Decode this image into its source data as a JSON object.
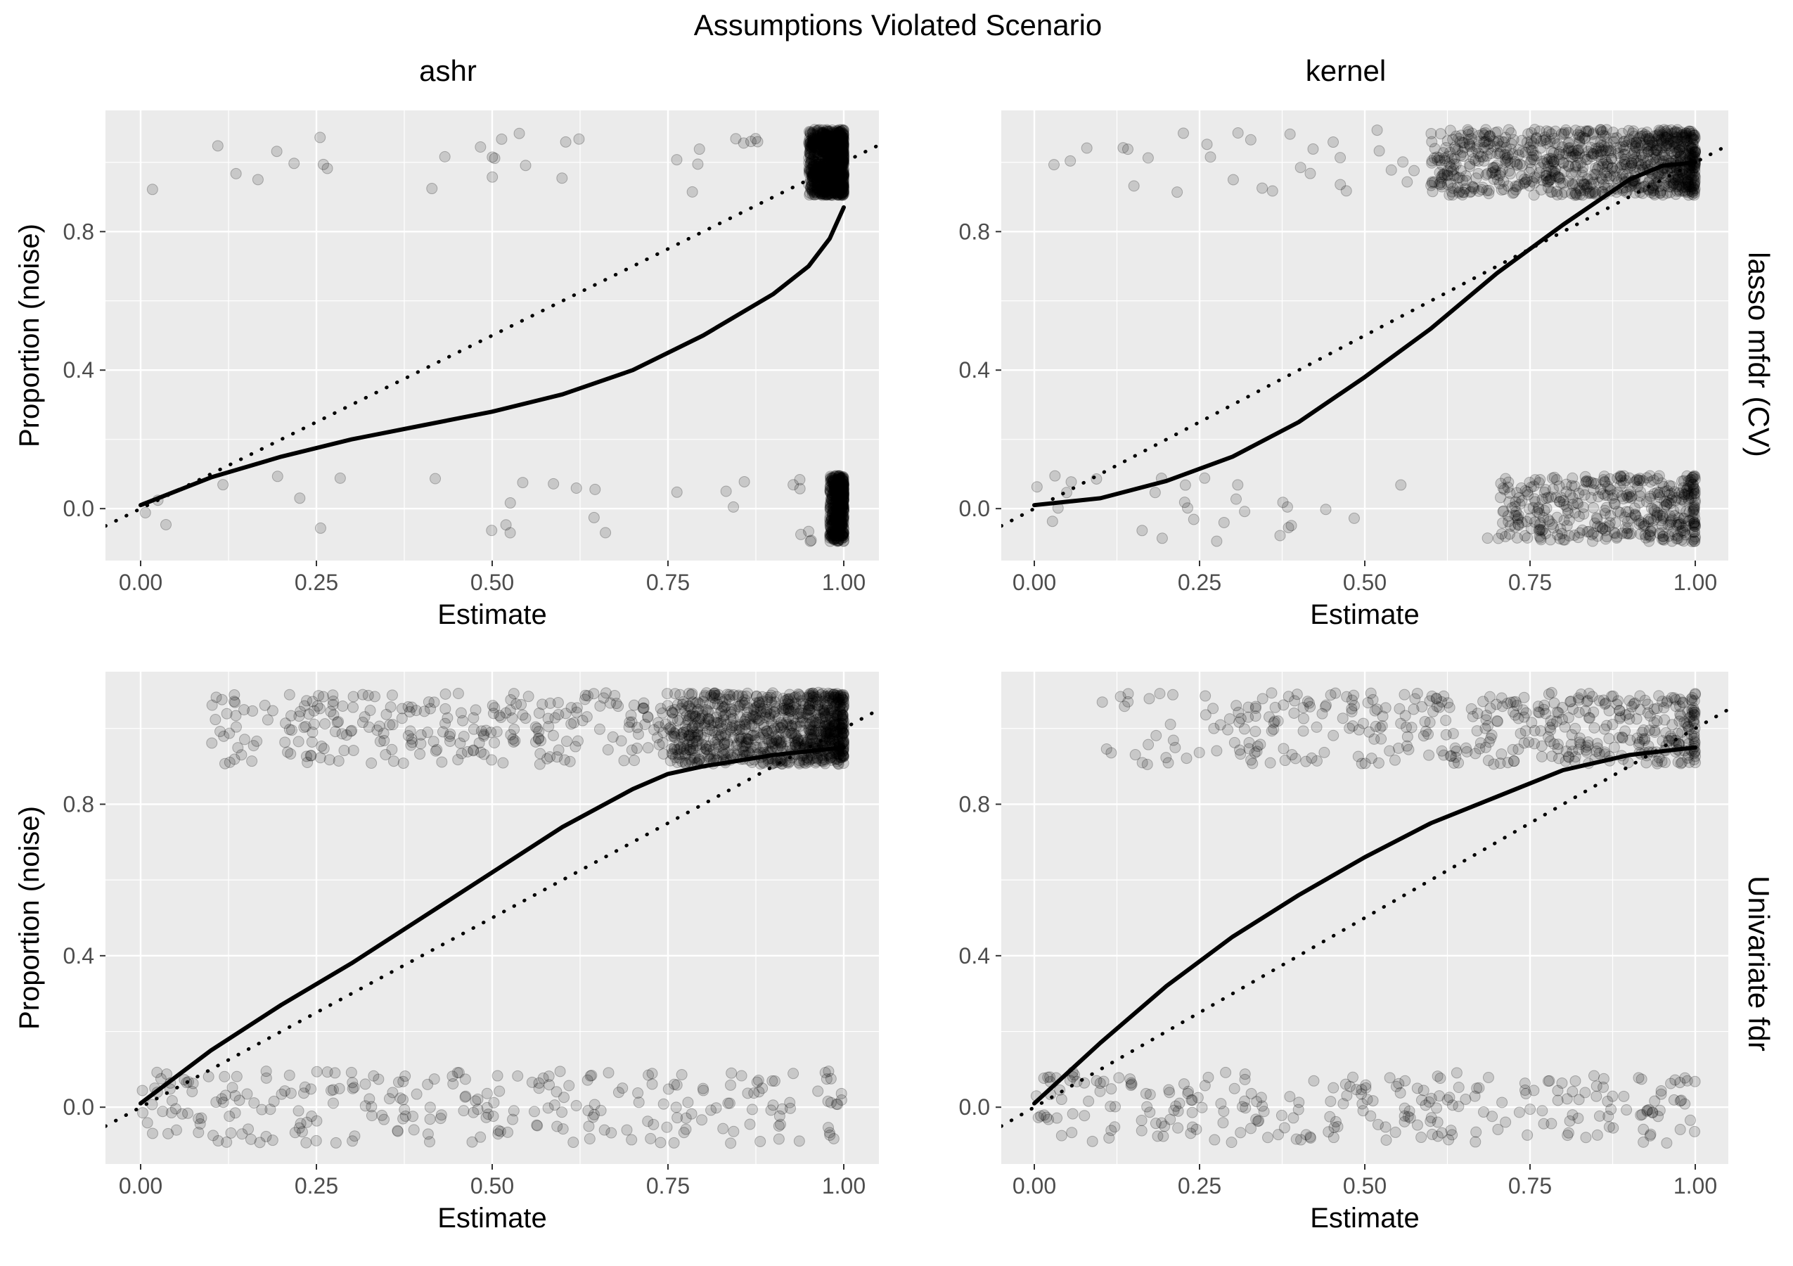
{
  "figure": {
    "title": "Assumptions Violated Scenario"
  },
  "columns": [
    "ashr",
    "kernel"
  ],
  "rows": [
    "lasso mfdr (CV)",
    "Univariate fdr"
  ],
  "axes": {
    "xlabel": "Estimate",
    "ylabel": "Proportion (noise)",
    "x_ticks": [
      "0.00",
      "0.25",
      "0.50",
      "0.75",
      "1.00"
    ],
    "y_ticks": [
      "0.0",
      "0.4",
      "0.8"
    ],
    "xlim": [
      -0.05,
      1.05
    ],
    "ylim": [
      -0.15,
      1.15
    ]
  },
  "colors": {
    "panel_bg": "#ebebeb",
    "grid": "#ffffff",
    "points": "#000000",
    "line": "#000000"
  },
  "chart_data": [
    {
      "type": "scatter",
      "panel": "ashr / lasso mfdr (CV)",
      "column": "ashr",
      "row": "lasso mfdr (CV)",
      "xlabel": "Estimate",
      "ylabel": "Proportion (noise)",
      "xlim": [
        -0.05,
        1.05
      ],
      "ylim": [
        -0.15,
        1.15
      ],
      "points_note": "jittered 0/1 outcomes with alpha 0.15",
      "point_clusters": [
        {
          "y": 1,
          "x_range": [
            0.95,
            1.0
          ],
          "density": "very high"
        },
        {
          "y": 1,
          "x_range": [
            0.0,
            0.95
          ],
          "density": "sparse"
        },
        {
          "y": 0,
          "x_range": [
            0.98,
            1.0
          ],
          "density": "high"
        },
        {
          "y": 0,
          "x_range": [
            0.0,
            0.98
          ],
          "density": "sparse"
        }
      ],
      "series": [
        {
          "name": "",
          "style": "solid",
          "x": [
            0.0,
            0.1,
            0.2,
            0.3,
            0.4,
            0.5,
            0.6,
            0.7,
            0.8,
            0.9,
            0.95,
            0.98,
            1.0
          ],
          "y": [
            0.01,
            0.09,
            0.15,
            0.2,
            0.24,
            0.28,
            0.33,
            0.4,
            0.5,
            0.62,
            0.7,
            0.78,
            0.87
          ]
        },
        {
          "name": "",
          "style": "dotted",
          "x": [
            -0.05,
            1.05
          ],
          "y": [
            -0.05,
            1.05
          ]
        }
      ]
    },
    {
      "type": "scatter",
      "panel": "kernel / lasso mfdr (CV)",
      "column": "kernel",
      "row": "lasso mfdr (CV)",
      "xlabel": "Estimate",
      "ylabel": "Proportion (noise)",
      "xlim": [
        -0.05,
        1.05
      ],
      "ylim": [
        -0.15,
        1.15
      ],
      "points_note": "jittered 0/1 outcomes with alpha 0.15",
      "point_clusters": [
        {
          "y": 1,
          "x_range": [
            0.6,
            1.0
          ],
          "density": "very high"
        },
        {
          "y": 1,
          "x_range": [
            0.0,
            0.6
          ],
          "density": "sparse"
        },
        {
          "y": 0,
          "x_range": [
            0.7,
            1.0
          ],
          "density": "high"
        },
        {
          "y": 0,
          "x_range": [
            0.0,
            0.7
          ],
          "density": "sparse"
        }
      ],
      "series": [
        {
          "name": "",
          "style": "solid",
          "x": [
            0.0,
            0.1,
            0.2,
            0.3,
            0.4,
            0.5,
            0.6,
            0.7,
            0.8,
            0.9,
            0.95,
            1.0
          ],
          "y": [
            0.01,
            0.03,
            0.08,
            0.15,
            0.25,
            0.38,
            0.52,
            0.68,
            0.82,
            0.95,
            0.99,
            1.0
          ]
        },
        {
          "name": "",
          "style": "dotted",
          "x": [
            -0.05,
            1.05
          ],
          "y": [
            -0.05,
            1.05
          ]
        }
      ]
    },
    {
      "type": "scatter",
      "panel": "ashr / Univariate fdr",
      "column": "ashr",
      "row": "Univariate fdr",
      "xlabel": "Estimate",
      "ylabel": "Proportion (noise)",
      "xlim": [
        -0.05,
        1.05
      ],
      "ylim": [
        -0.15,
        1.15
      ],
      "points_note": "jittered 0/1 outcomes with alpha 0.15",
      "point_clusters": [
        {
          "y": 1,
          "x_range": [
            0.75,
            1.0
          ],
          "density": "very high"
        },
        {
          "y": 1,
          "x_range": [
            0.1,
            0.75
          ],
          "density": "moderate"
        },
        {
          "y": 0,
          "x_range": [
            0.0,
            1.0
          ],
          "density": "moderate"
        }
      ],
      "series": [
        {
          "name": "",
          "style": "solid",
          "x": [
            0.0,
            0.1,
            0.2,
            0.3,
            0.4,
            0.5,
            0.6,
            0.7,
            0.75,
            0.8,
            0.9,
            1.0
          ],
          "y": [
            0.01,
            0.15,
            0.27,
            0.38,
            0.5,
            0.62,
            0.74,
            0.84,
            0.88,
            0.9,
            0.93,
            0.95
          ]
        },
        {
          "name": "",
          "style": "dotted",
          "x": [
            -0.05,
            1.05
          ],
          "y": [
            -0.05,
            1.05
          ]
        }
      ]
    },
    {
      "type": "scatter",
      "panel": "kernel / Univariate fdr",
      "column": "kernel",
      "row": "Univariate fdr",
      "xlabel": "Estimate",
      "ylabel": "Proportion (noise)",
      "xlim": [
        -0.05,
        1.05
      ],
      "ylim": [
        -0.15,
        1.15
      ],
      "points_note": "jittered 0/1 outcomes with alpha 0.15",
      "point_clusters": [
        {
          "y": 1,
          "x_range": [
            0.3,
            1.0
          ],
          "density": "high"
        },
        {
          "y": 1,
          "x_range": [
            0.1,
            0.3
          ],
          "density": "sparse"
        },
        {
          "y": 0,
          "x_range": [
            0.0,
            1.0
          ],
          "density": "moderate"
        }
      ],
      "series": [
        {
          "name": "",
          "style": "solid",
          "x": [
            0.0,
            0.1,
            0.2,
            0.3,
            0.4,
            0.5,
            0.6,
            0.7,
            0.8,
            0.9,
            1.0
          ],
          "y": [
            0.01,
            0.17,
            0.32,
            0.45,
            0.56,
            0.66,
            0.75,
            0.82,
            0.89,
            0.93,
            0.95
          ]
        },
        {
          "name": "",
          "style": "dotted",
          "x": [
            -0.05,
            1.05
          ],
          "y": [
            -0.05,
            1.05
          ]
        }
      ]
    }
  ]
}
